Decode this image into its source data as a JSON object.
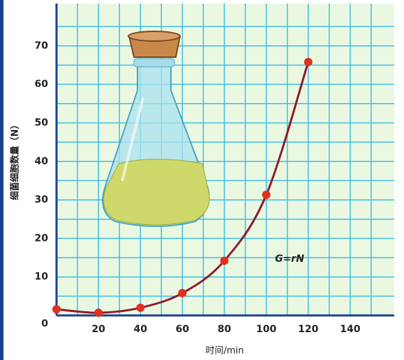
{
  "chart_data": {
    "type": "line",
    "x_label": "时间/min",
    "y_label": "细菌细胞数量（N）",
    "annotation": "G=rN",
    "x": [
      0,
      20,
      40,
      60,
      80,
      100,
      120
    ],
    "series": [
      {
        "color": "#8b1c2c",
        "marker_color": "#e0301e",
        "values": [
          1.6,
          0.7,
          2,
          5.8,
          14.2,
          31.3,
          65.8
        ]
      }
    ],
    "xlim": [
      0,
      161
    ],
    "ylim": [
      0,
      81
    ],
    "xticks": [
      20,
      40,
      60,
      80,
      100,
      120,
      140
    ],
    "yticks": [
      0,
      10,
      20,
      30,
      40,
      50,
      60,
      70
    ],
    "grid": true
  }
}
